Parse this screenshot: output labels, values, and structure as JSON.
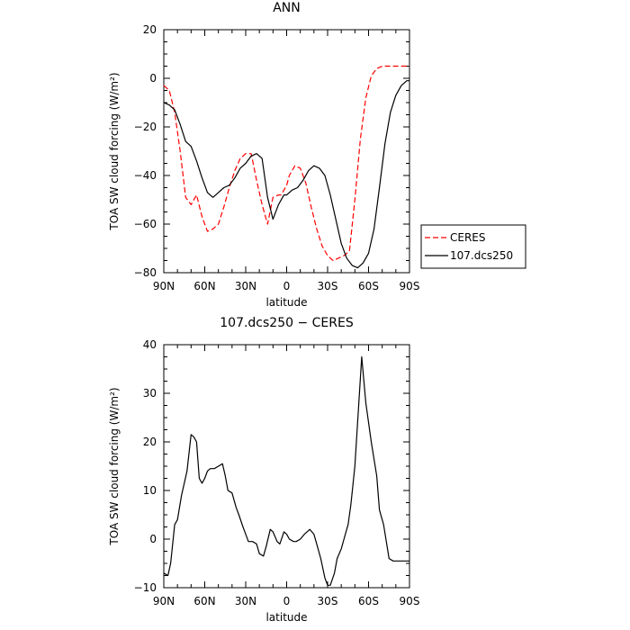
{
  "colors": {
    "ceres": "#ff0000",
    "model": "#000000",
    "axes": "#000000",
    "legend_border": "#000000"
  },
  "chart_data": [
    {
      "type": "line",
      "title": "ANN",
      "xlabel": "latitude",
      "ylabel": "TOA SW cloud forcing (W/m²)",
      "xlim": [
        90,
        -90
      ],
      "ylim": [
        -80,
        20
      ],
      "x_ticks": [
        {
          "value": 90,
          "label": "90N"
        },
        {
          "value": 60,
          "label": "60N"
        },
        {
          "value": 30,
          "label": "30N"
        },
        {
          "value": 0,
          "label": "0"
        },
        {
          "value": -30,
          "label": "30S"
        },
        {
          "value": -60,
          "label": "60S"
        },
        {
          "value": -90,
          "label": "90S"
        }
      ],
      "y_ticks": [
        20,
        0,
        -20,
        -40,
        -60,
        -80
      ],
      "legend_position": "right",
      "series": [
        {
          "name": "CERES",
          "style": "dashed",
          "x": [
            90,
            86,
            82,
            78,
            74,
            70,
            66,
            62,
            58,
            54,
            50,
            46,
            42,
            38,
            34,
            30,
            26,
            22,
            18,
            14,
            10,
            6,
            4,
            2,
            0,
            -2,
            -6,
            -10,
            -14,
            -18,
            -22,
            -26,
            -30,
            -34,
            -38,
            -42,
            -46,
            -50,
            -54,
            -58,
            -62,
            -66,
            -70,
            -74,
            -78,
            -82,
            -86,
            -90
          ],
          "y": [
            -3,
            -5,
            -14,
            -30,
            -49,
            -52,
            -48,
            -57,
            -63,
            -62,
            -60,
            -53,
            -45,
            -38,
            -33,
            -31,
            -31,
            -42,
            -52,
            -60,
            -49,
            -48,
            -48,
            -46,
            -44,
            -40,
            -36,
            -37,
            -43,
            -53,
            -62,
            -69,
            -73,
            -75,
            -74,
            -73,
            -71,
            -50,
            -25,
            -8,
            1,
            4,
            5,
            5,
            5,
            5,
            5,
            5
          ]
        },
        {
          "name": "107.dcs250",
          "style": "solid",
          "x": [
            90,
            86,
            82,
            78,
            74,
            70,
            66,
            62,
            58,
            54,
            50,
            46,
            42,
            38,
            34,
            30,
            26,
            22,
            18,
            14,
            10,
            6,
            2,
            0,
            -4,
            -8,
            -12,
            -16,
            -20,
            -24,
            -28,
            -32,
            -36,
            -40,
            -44,
            -48,
            -52,
            -56,
            -60,
            -64,
            -68,
            -72,
            -76,
            -80,
            -84,
            -88,
            -90
          ],
          "y": [
            -10,
            -11,
            -13,
            -19,
            -26,
            -28,
            -34,
            -41,
            -47,
            -49,
            -47,
            -45,
            -44,
            -41,
            -37,
            -35,
            -32,
            -31,
            -33,
            -49,
            -58,
            -52,
            -48,
            -48,
            -46,
            -45,
            -42,
            -38,
            -36,
            -37,
            -40,
            -48,
            -58,
            -68,
            -74,
            -77,
            -78,
            -76,
            -72,
            -62,
            -45,
            -27,
            -14,
            -7,
            -3,
            -1,
            -1
          ]
        }
      ]
    },
    {
      "type": "line",
      "title": "107.dcs250 − CERES",
      "xlabel": "latitude",
      "ylabel": "TOA SW cloud forcing (W/m²)",
      "xlim": [
        90,
        -90
      ],
      "ylim": [
        -10,
        40
      ],
      "x_ticks": [
        {
          "value": 90,
          "label": "90N"
        },
        {
          "value": 60,
          "label": "60N"
        },
        {
          "value": 30,
          "label": "30N"
        },
        {
          "value": 0,
          "label": "0"
        },
        {
          "value": -30,
          "label": "30S"
        },
        {
          "value": -60,
          "label": "60S"
        },
        {
          "value": -90,
          "label": "90S"
        }
      ],
      "y_ticks": [
        40,
        30,
        20,
        10,
        0,
        -10
      ],
      "series": [
        {
          "name": "107.dcs250",
          "style": "solid",
          "x": [
            90,
            87,
            85,
            82,
            80,
            77,
            73,
            70,
            68,
            66,
            64,
            62,
            60,
            58,
            56,
            53,
            50,
            47,
            45,
            43,
            40,
            37,
            35,
            32,
            30,
            28,
            25,
            22,
            20,
            17,
            15,
            12,
            10,
            7,
            5,
            2,
            0,
            -2,
            -5,
            -7,
            -10,
            -13,
            -17,
            -20,
            -22,
            -25,
            -28,
            -30,
            -32,
            -35,
            -37,
            -40,
            -43,
            -45,
            -47,
            -50,
            -55,
            -58,
            -62,
            -66,
            -68,
            -71,
            -75,
            -78,
            -81,
            -84,
            -88,
            -90
          ],
          "y": [
            -7,
            -7.5,
            -5,
            3,
            4,
            9,
            14,
            21.5,
            21,
            20,
            12.5,
            11.5,
            12.5,
            14,
            14.5,
            14.5,
            15,
            15.5,
            13,
            10,
            9.5,
            6.5,
            5,
            2.5,
            1,
            -0.5,
            -0.5,
            -1,
            -3,
            -3.5,
            -1.5,
            2,
            1.5,
            -0.5,
            -1,
            1.5,
            1,
            0,
            -0.5,
            -0.5,
            0,
            1,
            2,
            1,
            -1,
            -4,
            -8,
            -9.5,
            -9.5,
            -7,
            -4,
            -2,
            1,
            3,
            7,
            15,
            37.5,
            28,
            20,
            13,
            6,
            3,
            -4,
            -4.5,
            -4.5,
            -4.5,
            -4.5,
            -4.5
          ]
        }
      ]
    }
  ]
}
